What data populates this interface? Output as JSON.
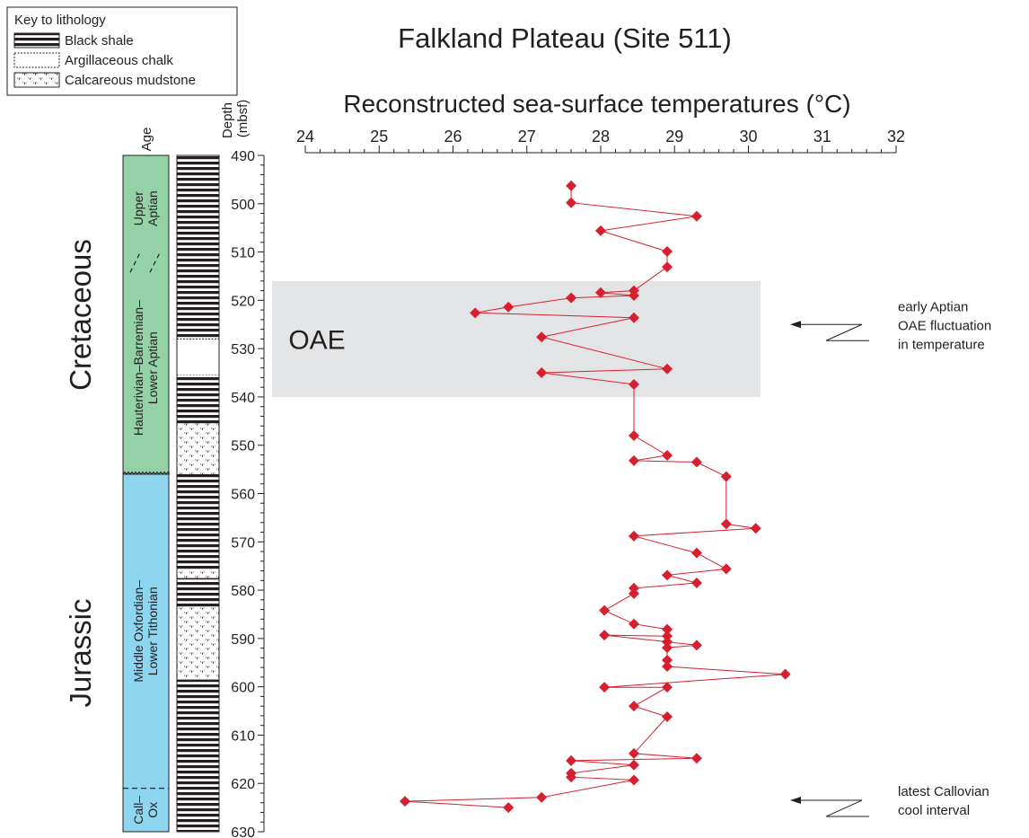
{
  "chart_data": {
    "type": "scatter",
    "title": "Falkland Plateau (Site 511)",
    "xlabel": "Reconstructed sea-surface temperatures (°C)",
    "ylabel": "Depth (mbsf)",
    "xlim": [
      24,
      32
    ],
    "ylim": [
      490,
      630
    ],
    "x_ticks": [
      24,
      25,
      26,
      27,
      28,
      29,
      30,
      31,
      32
    ],
    "y_ticks": [
      490,
      500,
      510,
      520,
      530,
      540,
      550,
      560,
      570,
      580,
      590,
      600,
      610,
      620,
      630
    ],
    "series": [
      {
        "color": "#d7202f",
        "points": [
          {
            "x": 27.6,
            "y": 496.3
          },
          {
            "x": 27.6,
            "y": 499.8
          },
          {
            "x": 29.3,
            "y": 502.6
          },
          {
            "x": 28.0,
            "y": 505.6
          },
          {
            "x": 28.9,
            "y": 509.9
          },
          {
            "x": 28.9,
            "y": 513.1
          },
          {
            "x": 28.45,
            "y": 518.0
          },
          {
            "x": 28.0,
            "y": 518.4
          },
          {
            "x": 28.45,
            "y": 519.0
          },
          {
            "x": 27.6,
            "y": 519.5
          },
          {
            "x": 26.75,
            "y": 521.4
          },
          {
            "x": 26.3,
            "y": 522.6
          },
          {
            "x": 28.45,
            "y": 523.6
          },
          {
            "x": 27.2,
            "y": 527.6
          },
          {
            "x": 28.9,
            "y": 534.2
          },
          {
            "x": 27.2,
            "y": 535.0
          },
          {
            "x": 28.45,
            "y": 537.4
          },
          {
            "x": 28.45,
            "y": 548.0
          },
          {
            "x": 28.9,
            "y": 552.1
          },
          {
            "x": 28.45,
            "y": 553.2
          },
          {
            "x": 29.3,
            "y": 553.5
          },
          {
            "x": 29.7,
            "y": 556.5
          },
          {
            "x": 29.7,
            "y": 566.3
          },
          {
            "x": 30.1,
            "y": 567.2
          },
          {
            "x": 28.45,
            "y": 568.8
          },
          {
            "x": 29.3,
            "y": 572.3
          },
          {
            "x": 29.7,
            "y": 575.6
          },
          {
            "x": 28.9,
            "y": 576.9
          },
          {
            "x": 29.3,
            "y": 578.5
          },
          {
            "x": 28.45,
            "y": 579.6
          },
          {
            "x": 28.45,
            "y": 580.7
          },
          {
            "x": 28.05,
            "y": 584.2
          },
          {
            "x": 28.45,
            "y": 587.0
          },
          {
            "x": 28.9,
            "y": 588.1
          },
          {
            "x": 28.9,
            "y": 589.5
          },
          {
            "x": 28.05,
            "y": 589.3
          },
          {
            "x": 28.9,
            "y": 590.7
          },
          {
            "x": 29.3,
            "y": 591.4
          },
          {
            "x": 28.9,
            "y": 591.9
          },
          {
            "x": 28.9,
            "y": 594.5
          },
          {
            "x": 28.9,
            "y": 595.8
          },
          {
            "x": 30.5,
            "y": 597.4
          },
          {
            "x": 28.05,
            "y": 600.1
          },
          {
            "x": 28.9,
            "y": 600.1
          },
          {
            "x": 28.45,
            "y": 604.0
          },
          {
            "x": 28.9,
            "y": 606.2
          },
          {
            "x": 28.45,
            "y": 613.8
          },
          {
            "x": 29.3,
            "y": 614.8
          },
          {
            "x": 27.6,
            "y": 615.3
          },
          {
            "x": 28.45,
            "y": 616.2
          },
          {
            "x": 27.6,
            "y": 617.9
          },
          {
            "x": 27.6,
            "y": 618.7
          },
          {
            "x": 28.45,
            "y": 619.3
          },
          {
            "x": 27.2,
            "y": 622.9
          },
          {
            "x": 25.35,
            "y": 623.7
          },
          {
            "x": 26.75,
            "y": 625.0
          }
        ]
      }
    ],
    "oae_band": {
      "label": "OAE",
      "from": 516.0,
      "to": 540.0
    },
    "annotations": [
      {
        "text": "early Aptian OAE fluctuation in temperature",
        "lines": [
          "early Aptian",
          "OAE fluctuation",
          "in temperature"
        ],
        "depth": 525
      },
      {
        "text": "latest Callovian cool interval",
        "lines": [
          "latest Callovian",
          "cool interval"
        ],
        "depth": 623.5
      }
    ],
    "legend": {
      "title": "Key to lithology",
      "items": [
        {
          "label": "Black shale",
          "pattern": "black-shale"
        },
        {
          "label": "Argillaceous chalk",
          "pattern": "argillaceous-chalk"
        },
        {
          "label": "Calcareous mudstone",
          "pattern": "calcareous-mudstone"
        }
      ]
    },
    "age_column": {
      "header": "Age",
      "periods": [
        {
          "label": "Cretaceous",
          "top": 490,
          "bottom": 556,
          "color": "#94d1a7"
        },
        {
          "label": "Jurassic",
          "top": 556,
          "bottom": 630,
          "color": "#8ed5f0"
        }
      ],
      "stages": [
        {
          "lines": [
            "Upper",
            "Aptian"
          ],
          "top": 490,
          "bottom": 512
        },
        {
          "lines": [
            "Hauterivian–Barremian–",
            "Lower Aptian"
          ],
          "top": 512,
          "bottom": 556
        },
        {
          "lines": [
            "Middle Oxfordian–",
            "Lower Tithonian"
          ],
          "top": 556,
          "bottom": 621
        },
        {
          "lines": [
            "Call–",
            "Ox"
          ],
          "top": 621,
          "bottom": 630
        }
      ]
    },
    "lithology_column": [
      {
        "pattern": "black-shale",
        "top": 490,
        "bottom": 528
      },
      {
        "pattern": "argillaceous-chalk",
        "top": 528,
        "bottom": 535.5
      },
      {
        "pattern": "black-shale",
        "top": 535.5,
        "bottom": 545.5
      },
      {
        "pattern": "calcareous-mudstone",
        "top": 545.5,
        "bottom": 556
      },
      {
        "pattern": "black-shale",
        "top": 556,
        "bottom": 576
      },
      {
        "pattern": "calcareous-mudstone",
        "top": 576,
        "bottom": 577.5
      },
      {
        "pattern": "black-shale",
        "top": 577.5,
        "bottom": 583.5
      },
      {
        "pattern": "calcareous-mudstone",
        "top": 583.5,
        "bottom": 598.5
      },
      {
        "pattern": "black-shale",
        "top": 598.5,
        "bottom": 630
      }
    ]
  }
}
